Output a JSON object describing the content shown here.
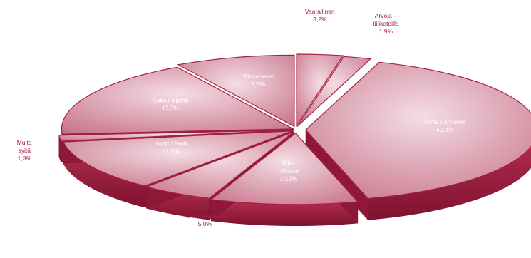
{
  "chart_data": {
    "type": "pie",
    "style": "3d-exploded",
    "colors": {
      "top_light": "#f4dde4",
      "top_mid": "#dba2b2",
      "top_dark": "#c9738b",
      "side": "#a42142",
      "side_dark": "#7e1230",
      "label_outside": "#a42142",
      "label_inside": "#ffffff"
    },
    "slices": [
      {
        "label": "Vaarallinen",
        "value_label": "3,2%",
        "value": 3.2
      },
      {
        "label": "Arvoja – tiilikatoilla",
        "value_label": "1,9%",
        "value": 1.9
      },
      {
        "label": "Hinta / arviointi",
        "value_label": "40,3%",
        "value": 40.3
      },
      {
        "label": "Kiire / piilossa",
        "value_label": "10,2%",
        "value": 10.2
      },
      {
        "label": "Arvostelemaan",
        "value_label": "5,0%",
        "value": 5.0
      },
      {
        "label": "Kunto / laatu",
        "value_label": "11,5%",
        "value": 11.5
      },
      {
        "label": "Muita syitä",
        "value_label": "1,3%",
        "value": 1.3
      },
      {
        "label": "Koko / sijainti",
        "value_label": "17,7%",
        "value": 17.7
      },
      {
        "label": "Toistaiseksi",
        "value_label": "8,3%",
        "value": 8.3
      }
    ]
  }
}
